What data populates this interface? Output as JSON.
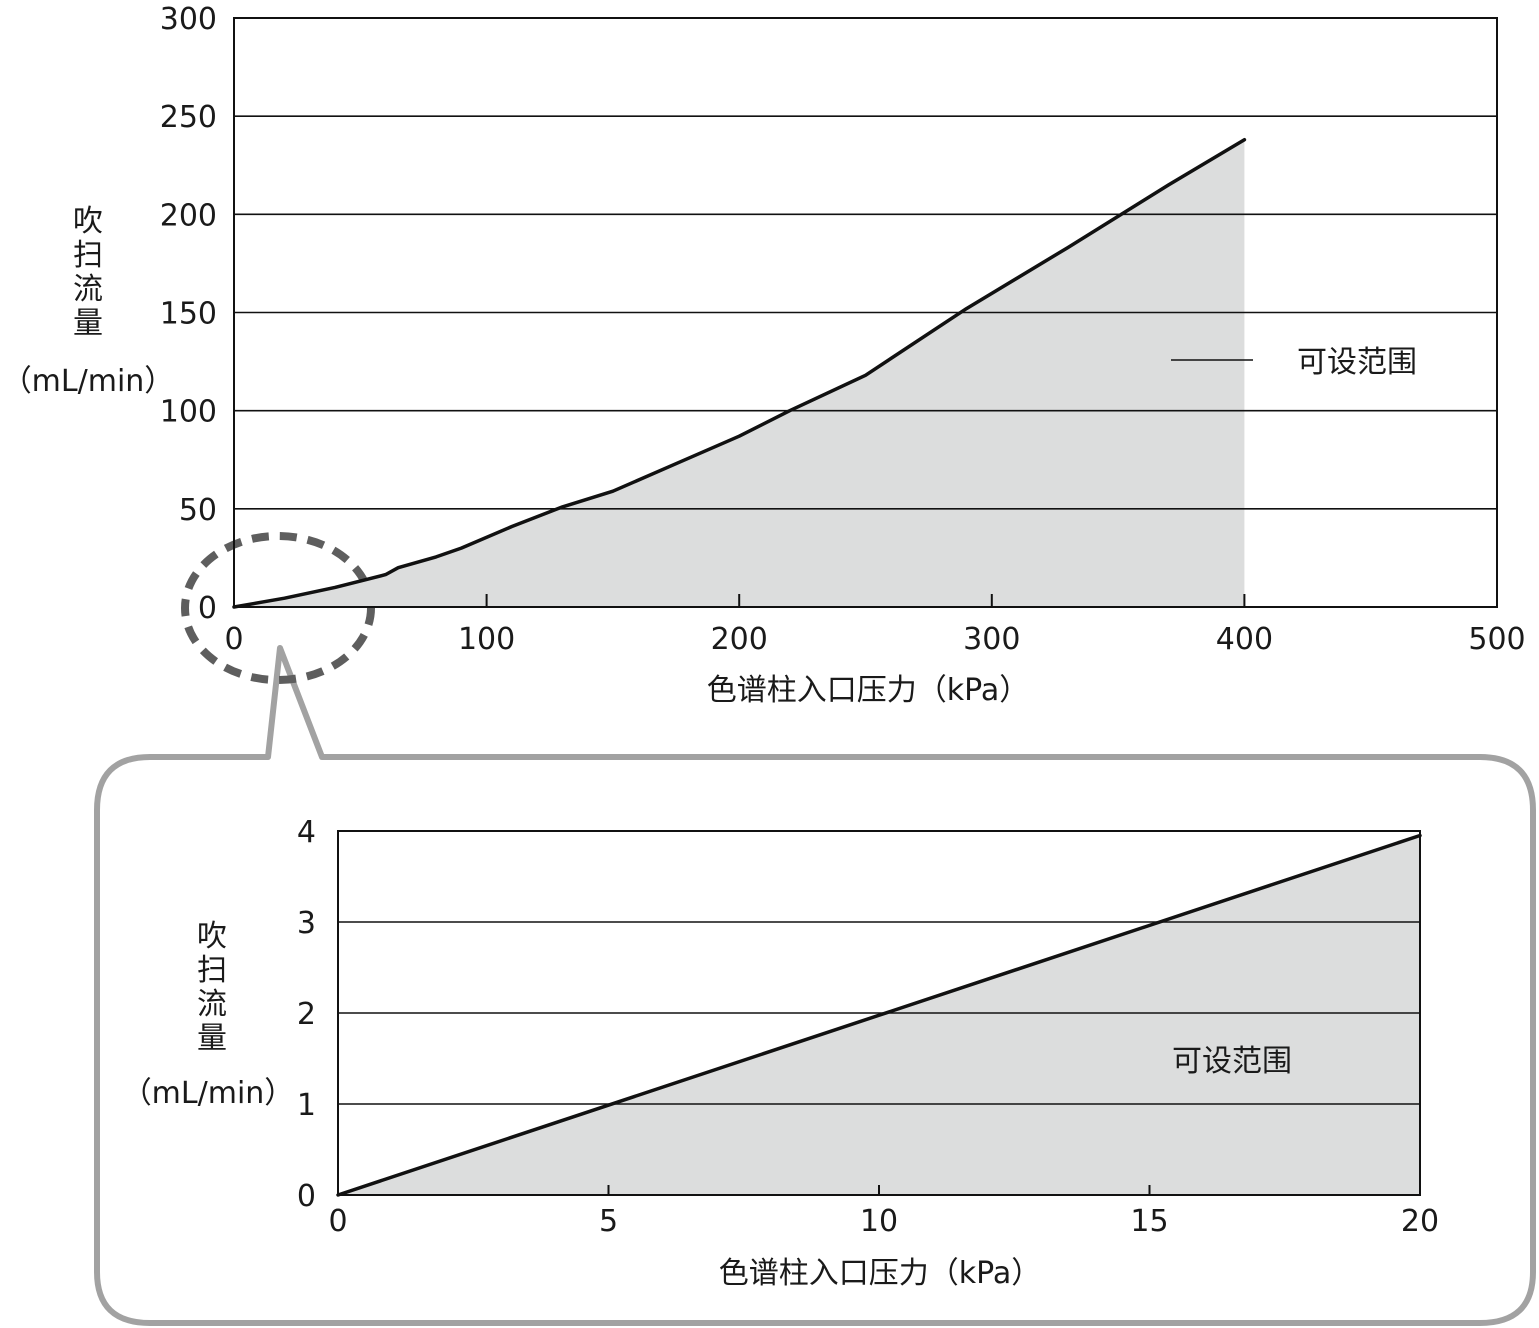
{
  "chart_data": [
    {
      "type": "area",
      "title": "",
      "xlabel": "色谱柱入口压力（kPa）",
      "ylabel_chars": [
        "吹",
        "扫",
        "流",
        "量"
      ],
      "yunit": "（mL/min）",
      "xlim": [
        0,
        500
      ],
      "ylim": [
        0,
        300
      ],
      "xticks": [
        0,
        100,
        200,
        300,
        400,
        500
      ],
      "yticks": [
        0,
        50,
        100,
        150,
        200,
        250,
        300
      ],
      "grid": "horizontal",
      "legend_position": "right-middle",
      "series": [
        {
          "name": "可设范围",
          "x": [
            0,
            20,
            40,
            60,
            65,
            80,
            90,
            110,
            130,
            150,
            175,
            200,
            220,
            250,
            290,
            330,
            370,
            400
          ],
          "y": [
            0,
            4.5,
            10,
            16.5,
            20,
            25.5,
            30,
            41,
            51,
            59,
            73,
            87,
            100,
            118,
            152,
            183,
            215,
            238
          ]
        }
      ]
    },
    {
      "type": "area",
      "title": "",
      "xlabel": "色谱柱入口压力（kPa）",
      "ylabel_chars": [
        "吹",
        "扫",
        "流",
        "量"
      ],
      "yunit": "（mL/min）",
      "xlim": [
        0,
        20
      ],
      "ylim": [
        0,
        4
      ],
      "xticks": [
        0,
        5,
        10,
        15,
        20
      ],
      "yticks": [
        0,
        1,
        2,
        3,
        4
      ],
      "grid": "horizontal",
      "legend_position": "inside-right",
      "series": [
        {
          "name": "可设范围",
          "x": [
            0,
            20
          ],
          "y": [
            0,
            3.95
          ]
        }
      ]
    }
  ]
}
